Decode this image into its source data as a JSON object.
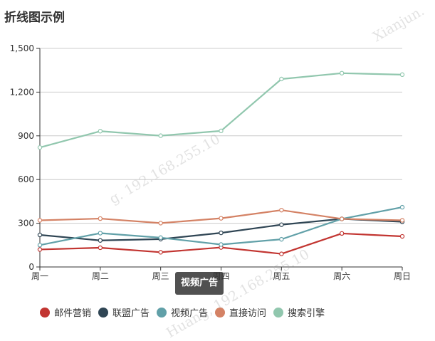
{
  "title": "折线图示例",
  "tooltip": "视频广告",
  "watermarks": [
    "g. 192.168.255.10",
    "Xianjun.",
    "Huang, 192.168.255.10"
  ],
  "chart_data": {
    "type": "line",
    "title": "折线图示例",
    "categories": [
      "周一",
      "周二",
      "周三",
      "周四",
      "周五",
      "周六",
      "周日"
    ],
    "ylim": [
      0,
      1500
    ],
    "yticks": [
      0,
      300,
      600,
      900,
      1200,
      1500
    ],
    "ytick_labels": [
      "0",
      "300",
      "600",
      "900",
      "1,200",
      "1,500"
    ],
    "grid": true,
    "legend_position": "bottom-left",
    "series": [
      {
        "name": "邮件营销",
        "color": "#c23531",
        "values": [
          120,
          132,
          101,
          134,
          90,
          230,
          210
        ]
      },
      {
        "name": "联盟广告",
        "color": "#2f4554",
        "values": [
          220,
          182,
          191,
          234,
          290,
          330,
          310
        ]
      },
      {
        "name": "视频广告",
        "color": "#61a0a8",
        "values": [
          150,
          232,
          201,
          154,
          190,
          330,
          410
        ]
      },
      {
        "name": "直接访问",
        "color": "#d48265",
        "values": [
          320,
          332,
          301,
          334,
          390,
          330,
          320
        ]
      },
      {
        "name": "搜索引擎",
        "color": "#91c7ae",
        "values": [
          820,
          932,
          901,
          934,
          1290,
          1330,
          1320
        ]
      }
    ]
  }
}
